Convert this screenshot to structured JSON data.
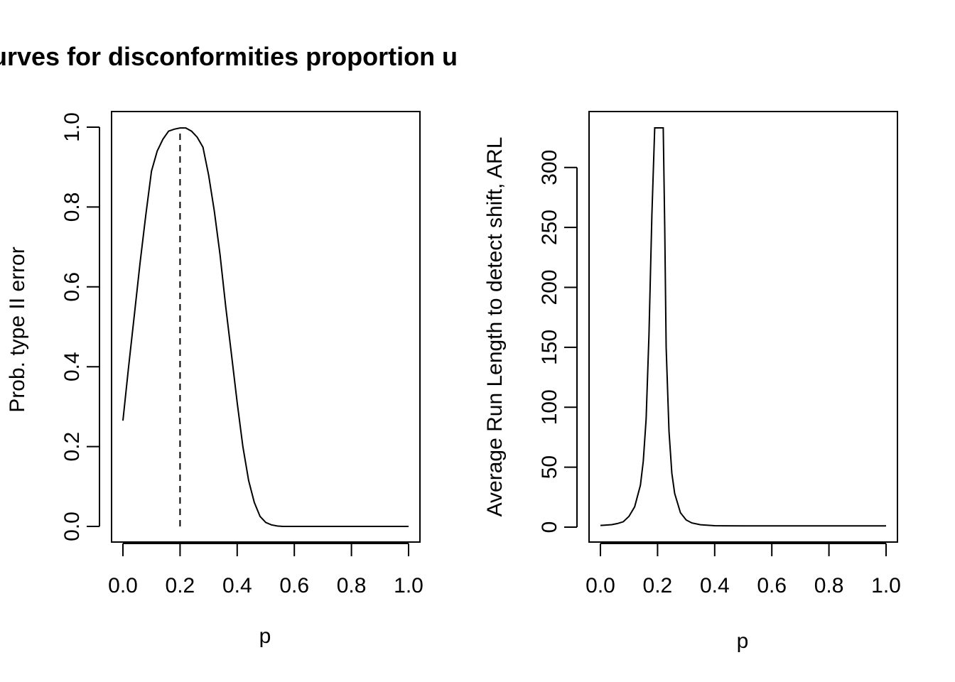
{
  "figure": {
    "title": "urves for disconformities proportion u"
  },
  "chart_data": [
    {
      "type": "line",
      "title": "",
      "xlabel": "p",
      "ylabel": "Prob. type II error",
      "xlim": [
        0,
        1
      ],
      "ylim": [
        0,
        1
      ],
      "xticks": [
        "0.0",
        "0.2",
        "0.4",
        "0.6",
        "0.8",
        "1.0"
      ],
      "yticks": [
        "0.0",
        "0.2",
        "0.4",
        "0.6",
        "0.8",
        "1.0"
      ],
      "series": [
        {
          "x": [
            0.0,
            0.02,
            0.04,
            0.06,
            0.08,
            0.1,
            0.12,
            0.14,
            0.16,
            0.18,
            0.2,
            0.22,
            0.24,
            0.26,
            0.28,
            0.3,
            0.32,
            0.34,
            0.36,
            0.38,
            0.4,
            0.42,
            0.44,
            0.46,
            0.48,
            0.5,
            0.52,
            0.54,
            0.56,
            0.6,
            0.7,
            0.8,
            0.9,
            1.0
          ],
          "y": [
            0.265,
            0.4,
            0.53,
            0.66,
            0.78,
            0.89,
            0.94,
            0.97,
            0.99,
            0.995,
            0.998,
            0.998,
            0.99,
            0.975,
            0.95,
            0.88,
            0.79,
            0.68,
            0.55,
            0.43,
            0.31,
            0.2,
            0.115,
            0.06,
            0.025,
            0.01,
            0.004,
            0.001,
            0.0,
            0.0,
            0.0,
            0.0,
            0.0,
            0.0
          ]
        }
      ],
      "reference_line": {
        "style": "dashed",
        "x": 0.2,
        "y_from": 0,
        "y_to": 0.998
      }
    },
    {
      "type": "line",
      "title": "",
      "xlabel": "p",
      "ylabel": "Average Run Length to detect shift, ARL",
      "xlim": [
        0,
        1
      ],
      "ylim": [
        0,
        333
      ],
      "xticks": [
        "0.0",
        "0.2",
        "0.4",
        "0.6",
        "0.8",
        "1.0"
      ],
      "yticks": [
        "0",
        "50",
        "100",
        "150",
        "200",
        "250",
        "300"
      ],
      "series": [
        {
          "x": [
            0.0,
            0.02,
            0.04,
            0.06,
            0.08,
            0.1,
            0.12,
            0.14,
            0.15,
            0.16,
            0.17,
            0.18,
            0.19,
            0.2,
            0.21,
            0.22,
            0.225,
            0.23,
            0.24,
            0.25,
            0.26,
            0.28,
            0.3,
            0.32,
            0.35,
            0.4,
            0.5,
            0.6,
            0.8,
            1.0
          ],
          "y": [
            1.4,
            1.7,
            2.1,
            3.0,
            4.5,
            9,
            17,
            35,
            55,
            90,
            160,
            260,
            333,
            333,
            333,
            333,
            250,
            150,
            80,
            45,
            28,
            12,
            6,
            3.5,
            2,
            1.2,
            1.0,
            1.0,
            1.0,
            1.0
          ]
        }
      ]
    }
  ]
}
